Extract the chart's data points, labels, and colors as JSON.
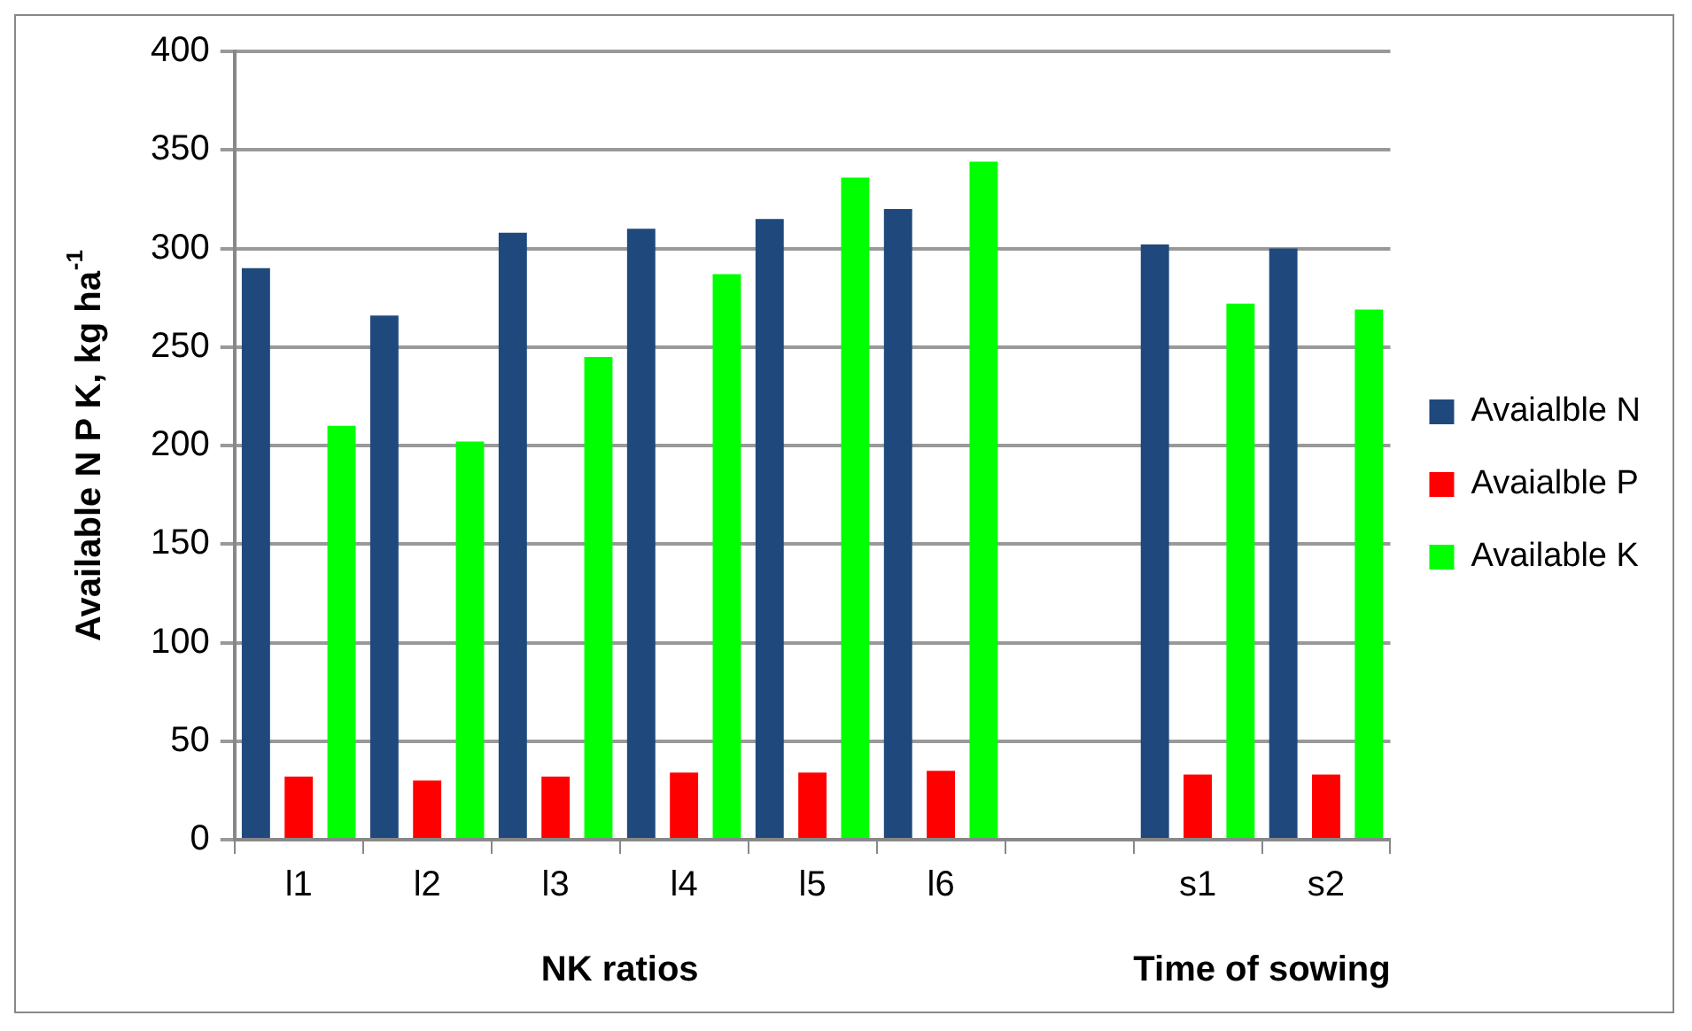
{
  "chart_data": {
    "type": "bar",
    "ylabel": "Available N P K, kg ha$^{-1}$",
    "categories": [
      "l1",
      "l2",
      "l3",
      "l4",
      "l5",
      "l6",
      null,
      "s1",
      "s2"
    ],
    "series": [
      {
        "name": "Avaialble N",
        "color": "#1f497d",
        "values": [
          290,
          266,
          308,
          310,
          315,
          320,
          null,
          302,
          300
        ]
      },
      {
        "name": "Avaialble P",
        "color": "#ff0000",
        "values": [
          32,
          30,
          32,
          34,
          34,
          35,
          null,
          33,
          33
        ]
      },
      {
        "name": "Available K",
        "color": "#00ff00",
        "values": [
          210,
          202,
          245,
          287,
          336,
          344,
          null,
          272,
          269
        ]
      }
    ],
    "annotations": [
      "NK ratios",
      "Time of sowing"
    ],
    "ylim": [
      0,
      400
    ],
    "yticks": [
      0,
      50,
      100,
      150,
      200,
      250,
      300,
      350,
      400
    ],
    "grid": "y",
    "legend": "right"
  }
}
